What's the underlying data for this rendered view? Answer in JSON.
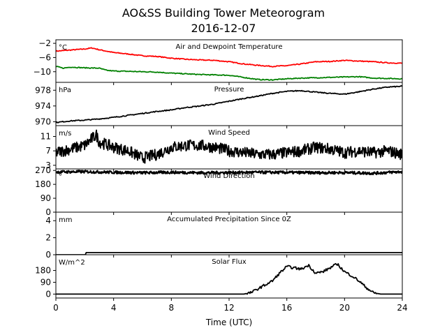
{
  "title": "AO&SS Building Tower Meteorogram",
  "subtitle": "2016-12-07",
  "colors": {
    "temperature": "#ff0000",
    "dewpoint": "#008000",
    "default": "#000000"
  },
  "chart_data": [
    {
      "type": "line",
      "panel_title": "Air and Dewpoint Temperature",
      "units": "°C",
      "xlim": [
        0,
        24
      ],
      "ylim": [
        -13,
        -1
      ],
      "yticks": [
        -2,
        -6,
        -10
      ],
      "series": [
        {
          "color": "#ff0000",
          "x": [
            0,
            1,
            2,
            2.5,
            3,
            4,
            5,
            6,
            7,
            8,
            9,
            10,
            11,
            12,
            13,
            14,
            15,
            16,
            17,
            18,
            19,
            20,
            21,
            22,
            23,
            24
          ],
          "values": [
            -4.2,
            -3.9,
            -3.6,
            -3.3,
            -3.8,
            -4.6,
            -5.0,
            -5.5,
            -5.7,
            -6.2,
            -6.5,
            -6.7,
            -6.8,
            -7.2,
            -7.8,
            -8.2,
            -8.5,
            -8.3,
            -7.8,
            -7.2,
            -7.1,
            -6.8,
            -7.0,
            -7.2,
            -7.5,
            -7.6
          ]
        },
        {
          "color": "#008000",
          "x": [
            0,
            0.5,
            1,
            2,
            3,
            3.5,
            4,
            5,
            6,
            7,
            8,
            9,
            10,
            11,
            12,
            13,
            13.5,
            14,
            15,
            16,
            17,
            18,
            19,
            20,
            21,
            22,
            23,
            24
          ],
          "values": [
            -8.5,
            -9.0,
            -8.7,
            -8.9,
            -9.0,
            -9.6,
            -9.8,
            -9.9,
            -10.0,
            -10.1,
            -10.4,
            -10.6,
            -10.8,
            -10.9,
            -11.0,
            -11.6,
            -11.9,
            -12.2,
            -12.3,
            -12.0,
            -11.8,
            -11.7,
            -11.6,
            -11.5,
            -11.4,
            -11.8,
            -11.9,
            -12.0
          ]
        }
      ]
    },
    {
      "type": "line",
      "panel_title": "Pressure",
      "units": "hPa",
      "xlim": [
        0,
        24
      ],
      "ylim": [
        969,
        980
      ],
      "yticks": [
        970,
        974,
        978
      ],
      "series": [
        {
          "color": "#000000",
          "x": [
            0,
            1,
            2,
            3,
            4,
            5,
            6,
            7,
            8,
            9,
            10,
            11,
            12,
            13,
            14,
            15,
            16,
            17,
            18,
            19,
            20,
            21,
            22,
            23,
            24
          ],
          "values": [
            969.8,
            970.2,
            970.4,
            970.7,
            971.1,
            971.6,
            972.1,
            972.6,
            973.0,
            973.6,
            974.0,
            974.5,
            975.2,
            975.9,
            976.5,
            977.2,
            977.7,
            977.9,
            977.5,
            977.2,
            977.0,
            977.6,
            978.3,
            978.8,
            979.0
          ]
        }
      ]
    },
    {
      "type": "line",
      "panel_title": "Wind Speed",
      "units": "m/s",
      "xlim": [
        0,
        24
      ],
      "ylim": [
        2,
        14
      ],
      "yticks": [
        3,
        7,
        11
      ],
      "noise": 1.6,
      "series": [
        {
          "color": "#000000",
          "x": [
            0,
            1,
            2,
            2.8,
            3,
            4,
            5,
            6,
            7,
            8,
            9,
            10,
            11,
            12,
            13,
            14,
            15,
            16,
            17,
            18,
            19,
            20,
            21,
            22,
            23,
            24
          ],
          "values": [
            6.5,
            7.5,
            8.5,
            11.5,
            9.5,
            8.0,
            7.0,
            5.0,
            6.0,
            8.0,
            8.5,
            8.5,
            8.0,
            7.0,
            6.5,
            6.0,
            6.0,
            6.5,
            7.0,
            8.0,
            7.5,
            6.5,
            7.0,
            6.5,
            7.0,
            6.0
          ]
        }
      ]
    },
    {
      "type": "line",
      "panel_title": "Wind Direction",
      "units": "°",
      "xlim": [
        0,
        24
      ],
      "ylim": [
        0,
        280
      ],
      "yticks": [
        0,
        90,
        180,
        270
      ],
      "noise": 9,
      "series": [
        {
          "color": "#000000",
          "x": [
            0,
            2,
            4,
            6,
            8,
            10,
            12,
            14,
            16,
            18,
            20,
            22,
            24
          ],
          "values": [
            260,
            262,
            258,
            255,
            258,
            255,
            256,
            258,
            257,
            255,
            256,
            252,
            262
          ]
        }
      ]
    },
    {
      "type": "line",
      "panel_title": "Accumulated Precipitation Since 0Z",
      "units": "mm",
      "xlim": [
        0,
        24
      ],
      "ylim": [
        0,
        5
      ],
      "yticks": [
        0,
        2,
        4
      ],
      "series": [
        {
          "color": "#000000",
          "x": [
            0,
            2.05,
            2.1,
            24
          ],
          "values": [
            0,
            0,
            0.25,
            0.25
          ]
        }
      ]
    },
    {
      "type": "line",
      "panel_title": "Solar Flux",
      "units": "W/m^2",
      "xlim": [
        0,
        24
      ],
      "ylim": [
        -30,
        300
      ],
      "yticks": [
        0,
        90,
        180
      ],
      "xticks": [
        0,
        4,
        8,
        12,
        16,
        20,
        24
      ],
      "xlabel": "Time (UTC)",
      "series": [
        {
          "color": "#000000",
          "x": [
            0,
            13,
            13.5,
            14,
            14.5,
            15,
            15.5,
            16,
            16.5,
            17,
            17.5,
            18,
            18.5,
            19,
            19.5,
            20,
            20.5,
            21,
            21.5,
            22,
            22.5,
            24
          ],
          "values": [
            0,
            0,
            10,
            40,
            70,
            100,
            160,
            210,
            200,
            190,
            220,
            160,
            170,
            200,
            230,
            170,
            140,
            100,
            50,
            10,
            0,
            0
          ]
        }
      ]
    }
  ]
}
